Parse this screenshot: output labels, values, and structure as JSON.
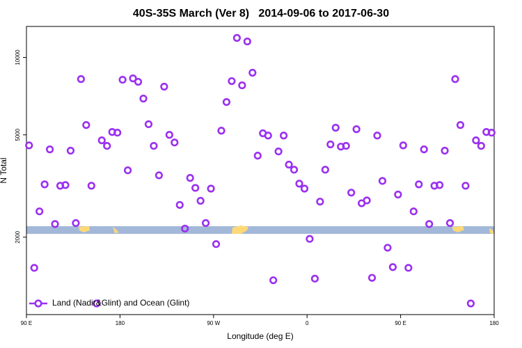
{
  "chart_data": {
    "type": "scatter",
    "title": "40S-35S March (Ver 8)   2014-09-06 to 2017-06-30",
    "x_label": "Longitude (deg E)",
    "y_label": "N Total",
    "log_y": true,
    "legend_position": "lower left",
    "xlim": [
      90,
      540
    ],
    "xticks": [
      {
        "value": 90,
        "label": "90 E"
      },
      180,
      {
        "value": 270,
        "label": "90 W"
      },
      {
        "value": 360,
        "label": "0"
      },
      {
        "value": 450,
        "label": "90 E"
      },
      {
        "value": 540,
        "label": "180"
      }
    ],
    "ylim": [
      1000,
      13200
    ],
    "yticks": [
      2000,
      5000,
      10000
    ],
    "series": [
      {
        "name": "Land (Nadir&Glint) and Ocean (Glint)",
        "color": "#9b30f0",
        "x": [
          92.5,
          97.5,
          102.5,
          107.5,
          112.5,
          117.5,
          122.5,
          127.5,
          132.5,
          137.5,
          142.5,
          147.5,
          152.5,
          157.5,
          162.5,
          167.5,
          172.5,
          177.5,
          182.5,
          187.5,
          192.5,
          197.5,
          202.5,
          207.5,
          212.5,
          217.5,
          222.5,
          227.5,
          232.5,
          237.5,
          242.5,
          247.5,
          252.5,
          257.5,
          262.5,
          267.5,
          272.5,
          277.5,
          282.5,
          287.5,
          292.5,
          297.5,
          302.5,
          307.5,
          312.5,
          317.5,
          322.5,
          327.5,
          332.5,
          337.5,
          342.5,
          347.5,
          352.5,
          357.5,
          362.5,
          367.5,
          372.5,
          377.5,
          382.5,
          387.5,
          392.5,
          397.5,
          402.5,
          407.5,
          412.5,
          417.5,
          422.5,
          427.5,
          432.5,
          437.5,
          442.5,
          447.5,
          452.5,
          457.5,
          462.5,
          467.5,
          472.5,
          477.5,
          482.5,
          487.5,
          492.5,
          497.5,
          502.5,
          507.5,
          512.5,
          517.5,
          522.5,
          527.5,
          532.5,
          537.5
        ],
        "values": [
          4550,
          1520,
          2520,
          3210,
          4390,
          2250,
          3170,
          3190,
          4340,
          2270,
          8240,
          5460,
          3170,
          1105,
          4760,
          4530,
          5130,
          5100,
          8190,
          3640,
          8290,
          8040,
          6920,
          5500,
          4530,
          3480,
          7700,
          5000,
          4670,
          2670,
          2160,
          3400,
          3110,
          2770,
          2270,
          3090,
          1880,
          5190,
          6710,
          8090,
          11910,
          7790,
          11540,
          8720,
          4150,
          5070,
          4970,
          1360,
          4310,
          4970,
          3830,
          3660,
          3230,
          3090,
          1970,
          1380,
          2750,
          3660,
          4590,
          5330,
          4500,
          4530,
          2980,
          5260,
          2710,
          2780,
          1390,
          4970,
          3310,
          1820,
          1530,
          2930,
          4550,
          1520,
          2520,
          3210,
          4390,
          2250,
          3170,
          3190,
          4340,
          2270,
          8240,
          5460,
          3170,
          1105,
          4760,
          4530,
          5130,
          5100
        ]
      }
    ]
  }
}
